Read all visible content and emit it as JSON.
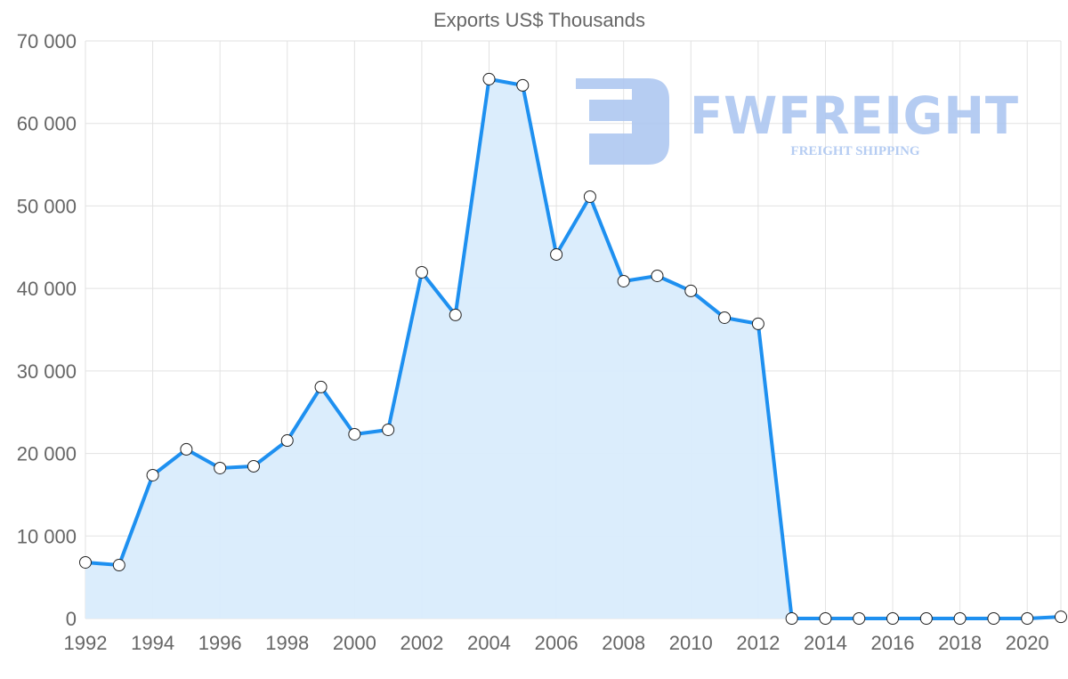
{
  "chart_data": {
    "type": "line",
    "title": "Exports US$ Thousands",
    "xlabel": "",
    "ylabel": "",
    "x": [
      1992,
      1993,
      1994,
      1995,
      1996,
      1997,
      1998,
      1999,
      2000,
      2001,
      2002,
      2003,
      2004,
      2005,
      2006,
      2007,
      2008,
      2009,
      2010,
      2011,
      2012,
      2013,
      2014,
      2015,
      2016,
      2017,
      2018,
      2019,
      2020,
      2021
    ],
    "series": [
      {
        "name": "Exports US$ Thousands",
        "values": [
          6800,
          6470,
          17370,
          20500,
          18230,
          18450,
          21570,
          28050,
          22330,
          22870,
          41960,
          36790,
          65370,
          64620,
          44120,
          51130,
          40880,
          41530,
          39700,
          36460,
          35710,
          0,
          0,
          0,
          0,
          0,
          0,
          0,
          0,
          200
        ]
      }
    ],
    "xlim": [
      1992,
      2021
    ],
    "ylim": [
      0,
      70000
    ],
    "x_tick_labels": [
      "1992",
      "1994",
      "1996",
      "1998",
      "2000",
      "2002",
      "2004",
      "2006",
      "2008",
      "2010",
      "2012",
      "2014",
      "2016",
      "2018",
      "2020"
    ],
    "y_tick_labels": [
      "0",
      "10 000",
      "20 000",
      "30 000",
      "40 000",
      "50 000",
      "60 000",
      "70 000"
    ],
    "grid": true,
    "colors": {
      "line": "#1e90f0",
      "fill": "#d9ecfc",
      "grid": "#e2e2e2",
      "watermark": "#a9c4f0"
    },
    "watermark": {
      "brand": "FWFREIGHT",
      "tagline": "FREIGHT SHIPPING"
    }
  }
}
